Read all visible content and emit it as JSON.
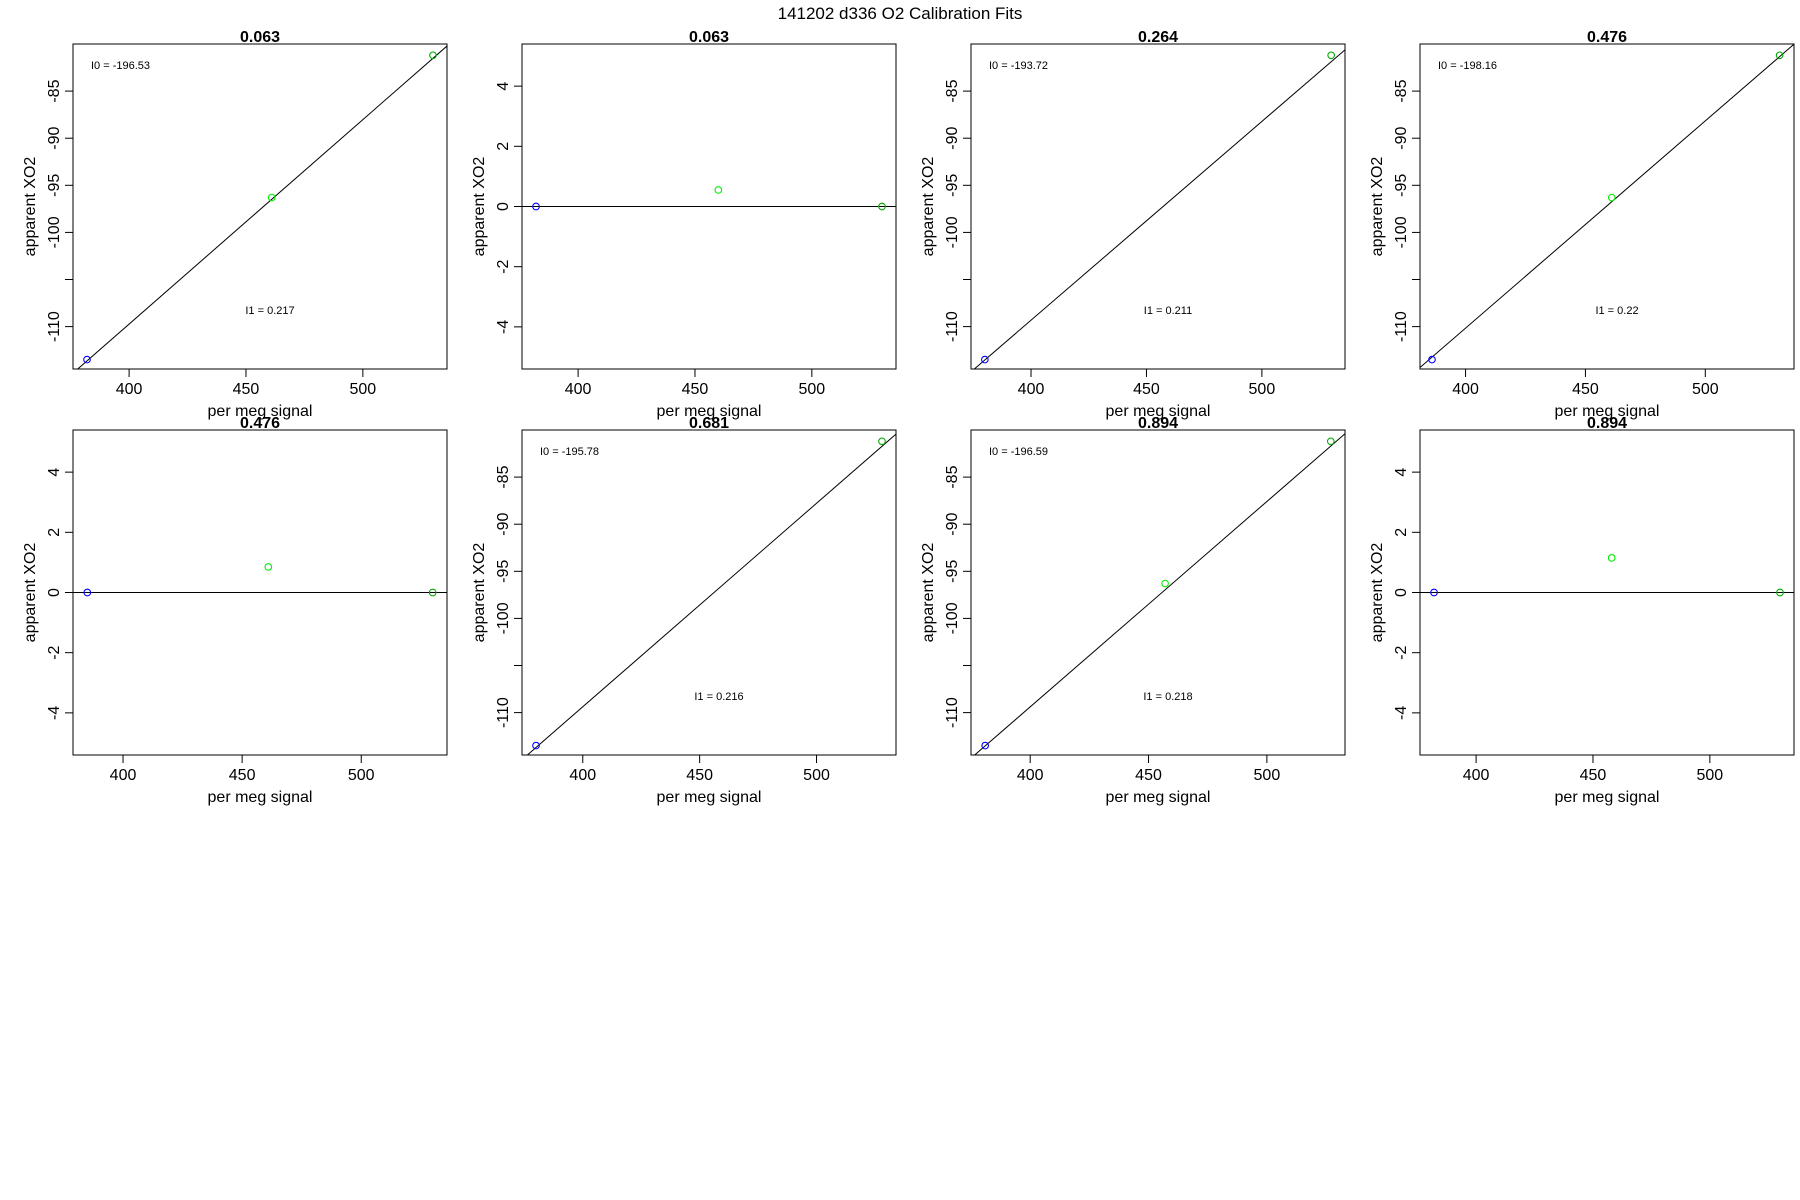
{
  "figure": {
    "title": "141202   d336   O2 Calibration Fits"
  },
  "chart_data": [
    {
      "type": "scatter",
      "title": "0.063",
      "xlabel": "per meg signal",
      "ylabel": "apparent XO2",
      "xlim": [
        376,
        536
      ],
      "ylim": [
        -114.5,
        -80
      ],
      "xticks": [
        400,
        450,
        500
      ],
      "yticks": [
        -110,
        -105,
        -100,
        -95,
        -90,
        -85
      ],
      "ytick_labels": [
        "-110",
        "",
        "-100",
        "-95",
        "-90",
        "-85"
      ],
      "points": [
        {
          "x": 382,
          "y": -113.5,
          "color": "#0000ff"
        },
        {
          "x": 461,
          "y": -96.3,
          "color": "#00ee00"
        },
        {
          "x": 530,
          "y": -81.2,
          "color": "#00aa00"
        }
      ],
      "fit_line": {
        "intercept": -196.53,
        "slope": 0.217
      },
      "annotations": [
        "I0 =  -196.53",
        "I1 =  0.217"
      ]
    },
    {
      "type": "scatter",
      "title": "0.063",
      "xlabel": "per meg signal",
      "ylabel": "apparent XO2",
      "xlim": [
        376,
        536
      ],
      "ylim": [
        -5.4,
        5.4
      ],
      "xticks": [
        400,
        450,
        500
      ],
      "yticks": [
        -4,
        -2,
        0,
        2,
        4
      ],
      "ytick_labels": [
        "-4",
        "-2",
        "0",
        "2",
        "4"
      ],
      "points": [
        {
          "x": 382,
          "y": 0,
          "color": "#0000ff"
        },
        {
          "x": 460,
          "y": 0.55,
          "color": "#00ee00"
        },
        {
          "x": 530,
          "y": 0,
          "color": "#00aa00"
        }
      ],
      "fit_line": {
        "intercept": 0,
        "slope": 0
      },
      "annotations": []
    },
    {
      "type": "scatter",
      "title": "0.264",
      "xlabel": "per meg signal",
      "ylabel": "apparent XO2",
      "xlim": [
        374,
        536
      ],
      "ylim": [
        -114.5,
        -80
      ],
      "xticks": [
        400,
        450,
        500
      ],
      "yticks": [
        -110,
        -105,
        -100,
        -95,
        -90,
        -85
      ],
      "ytick_labels": [
        "-110",
        "",
        "-100",
        "-95",
        "-90",
        "-85"
      ],
      "points": [
        {
          "x": 380,
          "y": -113.5,
          "color": "#0000ff"
        },
        {
          "x": 530,
          "y": -81.2,
          "color": "#00aa00"
        }
      ],
      "fit_line": {
        "intercept": -193.72,
        "slope": 0.211
      },
      "annotations": [
        "I0 =  -193.72",
        "I1 =  0.211"
      ]
    },
    {
      "type": "scatter",
      "title": "0.476",
      "xlabel": "per meg signal",
      "ylabel": "apparent XO2",
      "xlim": [
        381,
        537
      ],
      "ylim": [
        -114.5,
        -80
      ],
      "xticks": [
        400,
        450,
        500
      ],
      "yticks": [
        -110,
        -105,
        -100,
        -95,
        -90,
        -85
      ],
      "ytick_labels": [
        "-110",
        "",
        "-100",
        "-95",
        "-90",
        "-85"
      ],
      "points": [
        {
          "x": 386,
          "y": -113.5,
          "color": "#0000ff"
        },
        {
          "x": 461,
          "y": -96.3,
          "color": "#00ee00"
        },
        {
          "x": 531,
          "y": -81.2,
          "color": "#00aa00"
        }
      ],
      "fit_line": {
        "intercept": -198.16,
        "slope": 0.22
      },
      "annotations": [
        "I0 =  -198.16",
        "I1 =  0.22"
      ]
    },
    {
      "type": "scatter",
      "title": "0.476",
      "xlabel": "per meg signal",
      "ylabel": "apparent XO2",
      "xlim": [
        379,
        536
      ],
      "ylim": [
        -5.4,
        5.4
      ],
      "xticks": [
        400,
        450,
        500
      ],
      "yticks": [
        -4,
        -2,
        0,
        2,
        4
      ],
      "ytick_labels": [
        "-4",
        "-2",
        "0",
        "2",
        "4"
      ],
      "points": [
        {
          "x": 385,
          "y": 0,
          "color": "#0000ff"
        },
        {
          "x": 461,
          "y": 0.85,
          "color": "#00ee00"
        },
        {
          "x": 530,
          "y": 0,
          "color": "#00aa00"
        }
      ],
      "fit_line": {
        "intercept": 0,
        "slope": 0
      },
      "annotations": []
    },
    {
      "type": "scatter",
      "title": "0.681",
      "xlabel": "per meg signal",
      "ylabel": "apparent XO2",
      "xlim": [
        374,
        534
      ],
      "ylim": [
        -114.5,
        -80
      ],
      "xticks": [
        400,
        450,
        500
      ],
      "yticks": [
        -110,
        -105,
        -100,
        -95,
        -90,
        -85
      ],
      "ytick_labels": [
        "-110",
        "",
        "-100",
        "-95",
        "-90",
        "-85"
      ],
      "points": [
        {
          "x": 380,
          "y": -113.5,
          "color": "#0000ff"
        },
        {
          "x": 528,
          "y": -81.2,
          "color": "#00aa00"
        }
      ],
      "fit_line": {
        "intercept": -195.78,
        "slope": 0.216
      },
      "annotations": [
        "I0 =  -195.78",
        "I1 =  0.216"
      ]
    },
    {
      "type": "scatter",
      "title": "0.894",
      "xlabel": "per meg signal",
      "ylabel": "apparent XO2",
      "xlim": [
        375,
        533
      ],
      "ylim": [
        -114.5,
        -80
      ],
      "xticks": [
        400,
        450,
        500
      ],
      "yticks": [
        -110,
        -105,
        -100,
        -95,
        -90,
        -85
      ],
      "ytick_labels": [
        "-110",
        "",
        "-100",
        "-95",
        "-90",
        "-85"
      ],
      "points": [
        {
          "x": 381,
          "y": -113.5,
          "color": "#0000ff"
        },
        {
          "x": 457,
          "y": -96.3,
          "color": "#00ee00"
        },
        {
          "x": 527,
          "y": -81.2,
          "color": "#00aa00"
        }
      ],
      "fit_line": {
        "intercept": -196.59,
        "slope": 0.218
      },
      "annotations": [
        "I0 =  -196.59",
        "I1 =  0.218"
      ]
    },
    {
      "type": "scatter",
      "title": "0.894",
      "xlabel": "per meg signal",
      "ylabel": "apparent XO2",
      "xlim": [
        376,
        536
      ],
      "ylim": [
        -5.4,
        5.4
      ],
      "xticks": [
        400,
        450,
        500
      ],
      "yticks": [
        -4,
        -2,
        0,
        2,
        4
      ],
      "ytick_labels": [
        "-4",
        "-2",
        "0",
        "2",
        "4"
      ],
      "points": [
        {
          "x": 382,
          "y": 0,
          "color": "#0000ff"
        },
        {
          "x": 458,
          "y": 1.15,
          "color": "#00ee00"
        },
        {
          "x": 530,
          "y": 0,
          "color": "#00aa00"
        }
      ],
      "fit_line": {
        "intercept": 0,
        "slope": 0
      },
      "annotations": []
    }
  ]
}
